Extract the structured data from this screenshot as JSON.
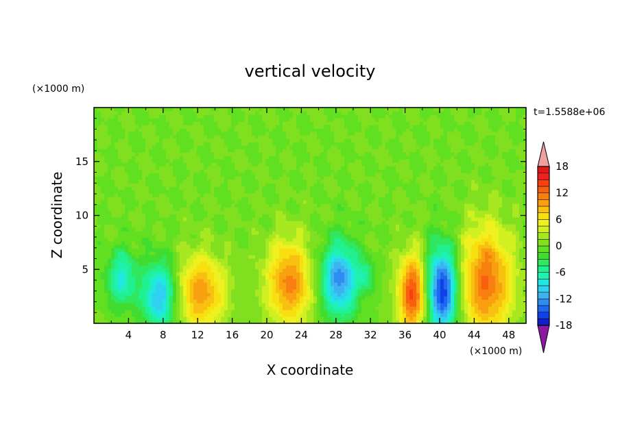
{
  "chart_data": {
    "type": "heatmap",
    "title": "vertical velocity",
    "xlabel": "X coordinate",
    "ylabel": "Z coordinate",
    "x_unit": "(×1000 m)",
    "y_unit": "(×1000 m)",
    "time_label": "t=1.5588e+06",
    "xlim": [
      0,
      50
    ],
    "ylim": [
      0,
      20
    ],
    "x_ticks": [
      4,
      8,
      12,
      16,
      20,
      24,
      28,
      32,
      36,
      40,
      44,
      48
    ],
    "y_ticks": [
      5,
      10,
      15
    ],
    "grid": false,
    "colorbar": {
      "levels": [
        -21,
        -19.5,
        -18,
        -16.5,
        -15,
        -13.5,
        -12,
        -10.5,
        -9,
        -7.5,
        -6,
        -4.5,
        -3,
        -1.5,
        0,
        1.5,
        3,
        4.5,
        6,
        7.5,
        9,
        10.5,
        12,
        13.5,
        15,
        16.5,
        18,
        19.5,
        21
      ],
      "tick_labels": [
        "18",
        "12",
        "6",
        "0",
        "-6",
        "-12",
        "-18"
      ],
      "tick_values": [
        18,
        12,
        6,
        0,
        -6,
        -12,
        -18
      ],
      "colors": [
        "#6a1ba0",
        "#2a14a8",
        "#1020c8",
        "#1040e8",
        "#1f66f0",
        "#2f8cf2",
        "#3fb0f0",
        "#30d0f0",
        "#20e8e0",
        "#20f0b0",
        "#20f090",
        "#30e860",
        "#40dc30",
        "#60e020",
        "#80e020",
        "#a8e820",
        "#d0f020",
        "#f0f020",
        "#f8e010",
        "#f8c010",
        "#f8a010",
        "#f88010",
        "#f86010",
        "#f84010",
        "#f02020",
        "#e01818"
      ],
      "under_color": "#8a1aa0",
      "over_color": "#f0a0a0"
    },
    "features": [
      {
        "x": 3.2,
        "z": 4.2,
        "w": -8,
        "sx": 1.2,
        "sz": 1.8
      },
      {
        "x": 7.6,
        "z": 2.6,
        "w": -11,
        "sx": 1.4,
        "sz": 2.2
      },
      {
        "x": 12.4,
        "z": 2.9,
        "w": 10,
        "sx": 2.0,
        "sz": 2.5
      },
      {
        "x": 22.6,
        "z": 3.8,
        "w": 11,
        "sx": 1.9,
        "sz": 2.8
      },
      {
        "x": 28.4,
        "z": 4.1,
        "w": -13,
        "sx": 1.5,
        "sz": 2.4
      },
      {
        "x": 31.5,
        "z": 4.5,
        "w": -5,
        "sx": 0.7,
        "sz": 1.0
      },
      {
        "x": 36.9,
        "z": 2.8,
        "w": 14,
        "sx": 1.2,
        "sz": 2.6
      },
      {
        "x": 40.3,
        "z": 3.1,
        "w": -17,
        "sx": 1.3,
        "sz": 2.8
      },
      {
        "x": 45.4,
        "z": 3.9,
        "w": 12,
        "sx": 2.2,
        "sz": 3.6
      }
    ]
  }
}
